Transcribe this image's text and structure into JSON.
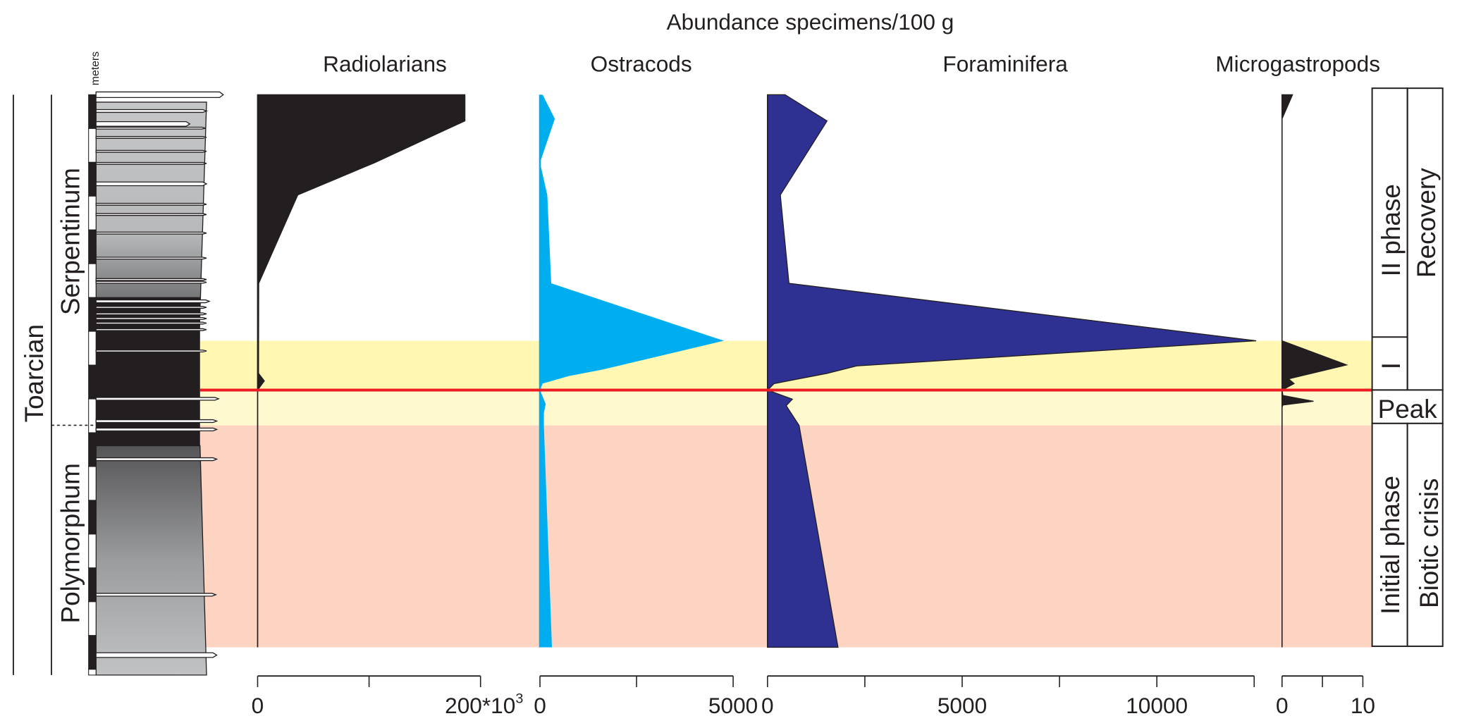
{
  "chart_data": {
    "type": "area",
    "title": "Abundance specimens/100 g",
    "depth_unit": "m",
    "depth_axis_label": "meters",
    "depth_range": [
      0,
      17.1
    ],
    "intervals": [
      {
        "name": "biotic-crisis-I",
        "from": 7.24,
        "to": 8.69,
        "color": "#fff7b2"
      },
      {
        "name": "peak",
        "from": 8.69,
        "to": 9.73,
        "color": "#fff9d0"
      },
      {
        "name": "initial-phase",
        "from": 9.73,
        "to": 16.26,
        "color": "#fdd3c1"
      }
    ],
    "red_line_depth": 8.69,
    "red_line_color": "#ed1c24",
    "stage": "Toarcian",
    "zones": [
      {
        "name": "Serpentinum",
        "from": 0,
        "to": 9.73
      },
      {
        "name": "Polymorphum",
        "from": 9.73,
        "to": 17.1
      }
    ],
    "phases": [
      {
        "label": "II phase",
        "from": 0,
        "to": 7.24
      },
      {
        "label": "I",
        "from": 7.24,
        "to": 8.69
      },
      {
        "label": "Peak",
        "from": 8.69,
        "to": 9.73
      },
      {
        "label": "Initial phase",
        "from": 9.73,
        "to": 16.26
      }
    ],
    "episodes": [
      {
        "label": "Recovery",
        "from": 0,
        "to": 8.69
      },
      {
        "label": "Biotic crisis",
        "from": 9.73,
        "to": 16.26
      }
    ],
    "series": [
      {
        "name": "Radiolarians",
        "color": "#231f20",
        "xlim": [
          0,
          200000
        ],
        "ticks": [
          0,
          100000,
          200000
        ],
        "tick_labels": [
          "0",
          "",
          "200*10"
        ],
        "tick_label_sup": "3",
        "points": [
          {
            "depth": 0,
            "value": 186000
          },
          {
            "depth": 0.77,
            "value": 186000
          },
          {
            "depth": 2.0,
            "value": 105000
          },
          {
            "depth": 2.95,
            "value": 36000
          },
          {
            "depth": 5.55,
            "value": 1000
          },
          {
            "depth": 8.2,
            "value": 800
          },
          {
            "depth": 8.42,
            "value": 6000
          },
          {
            "depth": 8.69,
            "value": 0
          },
          {
            "depth": 16.26,
            "value": 0
          }
        ]
      },
      {
        "name": "Ostracods",
        "color": "#00aeef",
        "xlim": [
          0,
          5000
        ],
        "ticks": [
          0,
          2500,
          5000
        ],
        "tick_labels": [
          "0",
          "",
          "5000"
        ],
        "points": [
          {
            "depth": 0,
            "value": 70
          },
          {
            "depth": 0.71,
            "value": 385
          },
          {
            "depth": 2.0,
            "value": 0
          },
          {
            "depth": 2.95,
            "value": 190
          },
          {
            "depth": 5.55,
            "value": 290
          },
          {
            "depth": 7.24,
            "value": 4760
          },
          {
            "depth": 8.09,
            "value": 1610
          },
          {
            "depth": 8.28,
            "value": 745
          },
          {
            "depth": 8.5,
            "value": 70
          },
          {
            "depth": 8.69,
            "value": 0
          },
          {
            "depth": 9.1,
            "value": 150
          },
          {
            "depth": 9.37,
            "value": 100
          },
          {
            "depth": 9.73,
            "value": 100
          },
          {
            "depth": 16.26,
            "value": 310
          }
        ]
      },
      {
        "name": "Foraminifera",
        "color": "#2e3192",
        "xlim": [
          0,
          12500
        ],
        "ticks": [
          0,
          2500,
          5000,
          7500,
          10000,
          12500
        ],
        "tick_labels": [
          "0",
          "",
          "5000",
          "",
          "10000",
          ""
        ],
        "points": [
          {
            "depth": 0,
            "value": 450
          },
          {
            "depth": 0.77,
            "value": 1530
          },
          {
            "depth": 2.95,
            "value": 330
          },
          {
            "depth": 5.55,
            "value": 550
          },
          {
            "depth": 7.24,
            "value": 12550
          },
          {
            "depth": 7.98,
            "value": 2290
          },
          {
            "depth": 8.2,
            "value": 1530
          },
          {
            "depth": 8.5,
            "value": 170
          },
          {
            "depth": 8.69,
            "value": 0
          },
          {
            "depth": 8.96,
            "value": 640
          },
          {
            "depth": 9.15,
            "value": 480
          },
          {
            "depth": 9.73,
            "value": 810
          },
          {
            "depth": 16.26,
            "value": 1810
          }
        ]
      },
      {
        "name": "Microgastropods",
        "color": "#231f20",
        "xlim": [
          0,
          10
        ],
        "ticks": [
          0,
          5,
          10
        ],
        "tick_labels": [
          "0",
          "",
          "10"
        ],
        "points": [
          {
            "depth": 0,
            "value": 1.3
          },
          {
            "depth": 0.71,
            "value": 0
          },
          {
            "depth": 7.24,
            "value": 0
          },
          {
            "depth": 7.95,
            "value": 8.0
          },
          {
            "depth": 8.36,
            "value": 0.8
          },
          {
            "depth": 8.5,
            "value": 1.5
          },
          {
            "depth": 8.69,
            "value": 0
          },
          {
            "depth": 8.85,
            "value": 0.1
          },
          {
            "depth": 9.02,
            "value": 3.9
          },
          {
            "depth": 9.13,
            "value": 0.1
          },
          {
            "depth": 9.2,
            "value": 0
          },
          {
            "depth": 16.26,
            "value": 0
          }
        ]
      }
    ]
  }
}
